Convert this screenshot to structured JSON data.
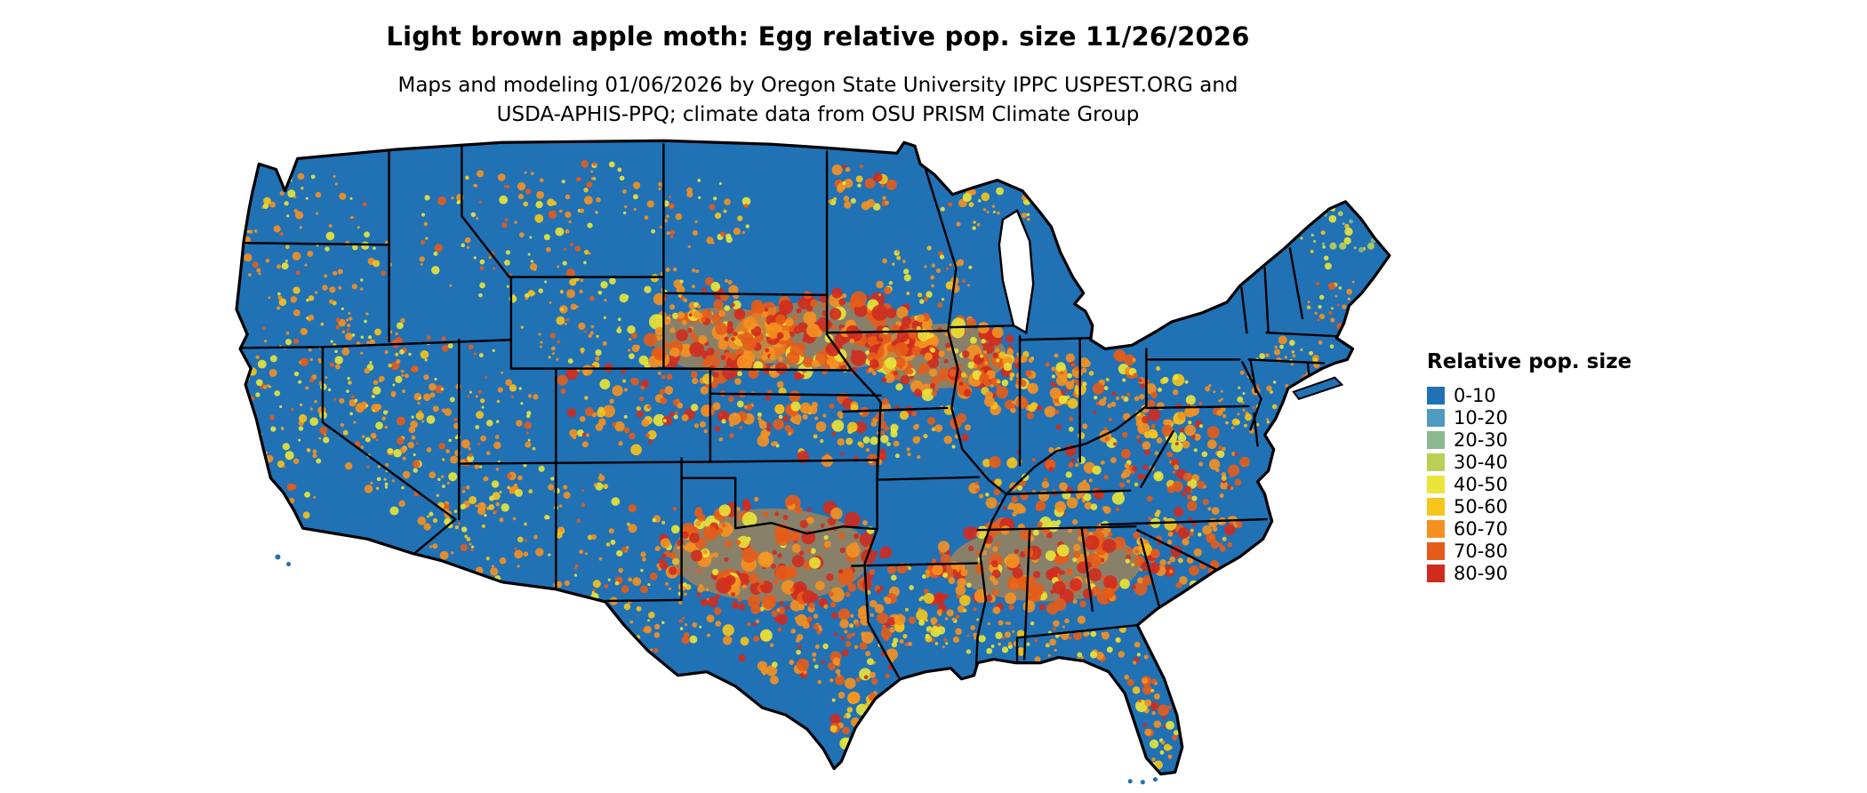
{
  "header": {
    "title": "Light brown apple moth: Egg relative pop. size 11/26/2026",
    "subtitle_line1": "Maps and modeling 01/06/2026 by Oregon State University IPPC USPEST.ORG and",
    "subtitle_line2": "USDA-APHIS-PPQ; climate data from OSU PRISM Climate Group"
  },
  "map": {
    "region_depicted": "Conterminous United States",
    "base_color": "#2171b5",
    "state_border_color": "#000000"
  },
  "legend": {
    "title": "Relative pop. size",
    "items": [
      {
        "label": "0-10",
        "color": "#2171b5"
      },
      {
        "label": "10-20",
        "color": "#4e9ac0"
      },
      {
        "label": "20-30",
        "color": "#8ab88f"
      },
      {
        "label": "30-40",
        "color": "#b9cf57"
      },
      {
        "label": "40-50",
        "color": "#e9e539"
      },
      {
        "label": "50-60",
        "color": "#f7c51b"
      },
      {
        "label": "60-70",
        "color": "#f59120"
      },
      {
        "label": "70-80",
        "color": "#e55c19"
      },
      {
        "label": "80-90",
        "color": "#d12b1e"
      }
    ]
  }
}
